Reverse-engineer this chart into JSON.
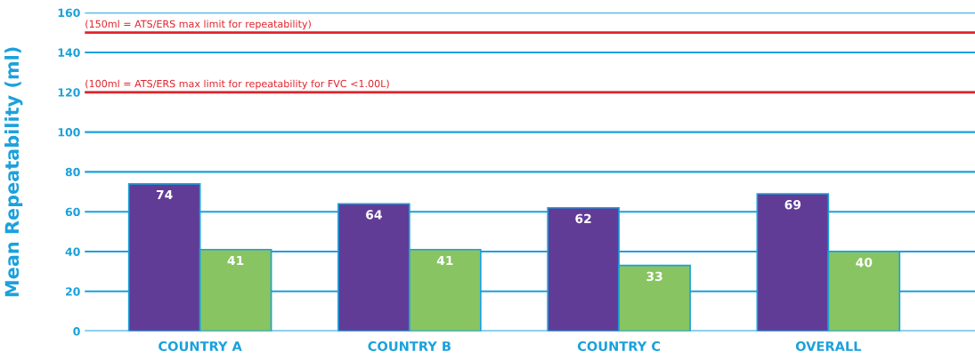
{
  "chart_data": {
    "type": "bar",
    "ylabel": "Mean Repeatability (ml)",
    "categories": [
      "COUNTRY A",
      "COUNTRY B",
      "COUNTRY C",
      "OVERALL"
    ],
    "series": [
      {
        "color": "#613c96",
        "values": [
          74,
          64,
          62,
          69
        ]
      },
      {
        "color": "#88c462",
        "values": [
          41,
          41,
          33,
          40
        ]
      }
    ],
    "ylim": [
      0,
      160
    ],
    "yticks": [
      0,
      20,
      40,
      60,
      80,
      100,
      120,
      140,
      160
    ],
    "grid": "y",
    "data_labels": true,
    "ref_lines": [
      {
        "axis": "y",
        "value": 150,
        "label": "(150ml = ATS/ERS max limit for repeatability)",
        "color": "#e0242c"
      },
      {
        "axis": "y",
        "value": 120,
        "label": "(100ml = ATS/ERS max limit for repeatability for FVC <1.00L)",
        "color": "#e0242c"
      }
    ]
  }
}
